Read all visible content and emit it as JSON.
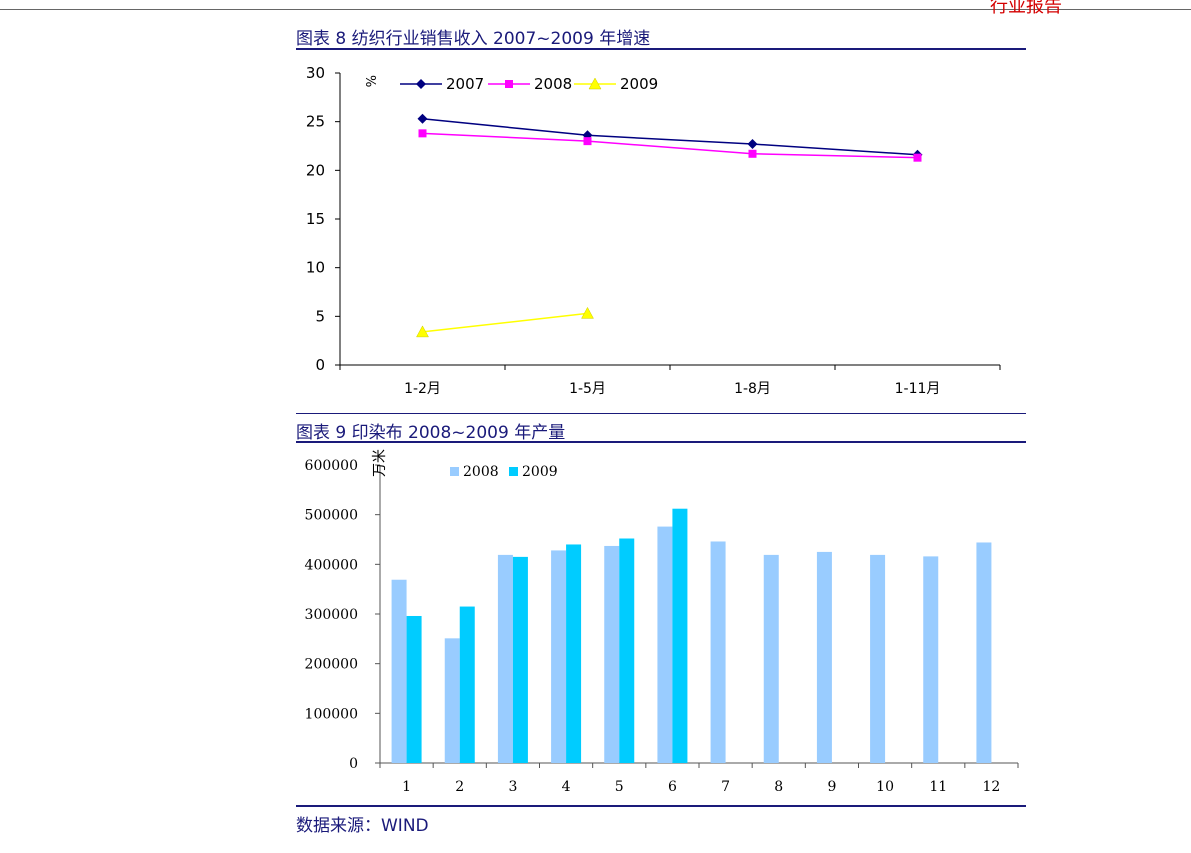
{
  "header": {
    "brand_partial": "行业报告"
  },
  "chart_data": [
    {
      "type": "line",
      "title": "图表 8 纺织行业销售收入 2007~2009 年增速",
      "ylabel": "%",
      "categories": [
        "1-2月",
        "1-5月",
        "1-8月",
        "1-11月"
      ],
      "ylim": [
        0,
        30
      ],
      "yticks": [
        0,
        5,
        10,
        15,
        20,
        25,
        30
      ],
      "legend_position": "top-left",
      "grid": false,
      "series": [
        {
          "name": "2007",
          "values": [
            25.3,
            23.6,
            22.7,
            21.6
          ],
          "color": "#000080",
          "marker": "diamond"
        },
        {
          "name": "2008",
          "values": [
            23.8,
            23.0,
            21.7,
            21.3
          ],
          "color": "#ff00ff",
          "marker": "square"
        },
        {
          "name": "2009",
          "values": [
            3.4,
            5.3,
            null,
            null
          ],
          "color": "#ffff00",
          "marker": "triangle"
        }
      ]
    },
    {
      "type": "bar",
      "title": "图表 9 印染布 2008~2009 年产量",
      "ylabel": "万米",
      "categories": [
        "1",
        "2",
        "3",
        "4",
        "5",
        "6",
        "7",
        "8",
        "9",
        "10",
        "11",
        "12"
      ],
      "ylim": [
        0,
        600000
      ],
      "yticks": [
        0,
        100000,
        200000,
        300000,
        400000,
        500000,
        600000
      ],
      "legend_position": "top-left",
      "grid": false,
      "series": [
        {
          "name": "2008",
          "values": [
            369000,
            251000,
            419000,
            428000,
            437000,
            476000,
            446000,
            419000,
            425000,
            419000,
            416000,
            444000
          ],
          "color": "#99ccff"
        },
        {
          "name": "2009",
          "values": [
            296000,
            315000,
            415000,
            440000,
            452000,
            512000,
            null,
            null,
            null,
            null,
            null,
            null
          ],
          "color": "#00ccff"
        }
      ]
    }
  ],
  "footer": {
    "source": "数据来源：WIND"
  }
}
